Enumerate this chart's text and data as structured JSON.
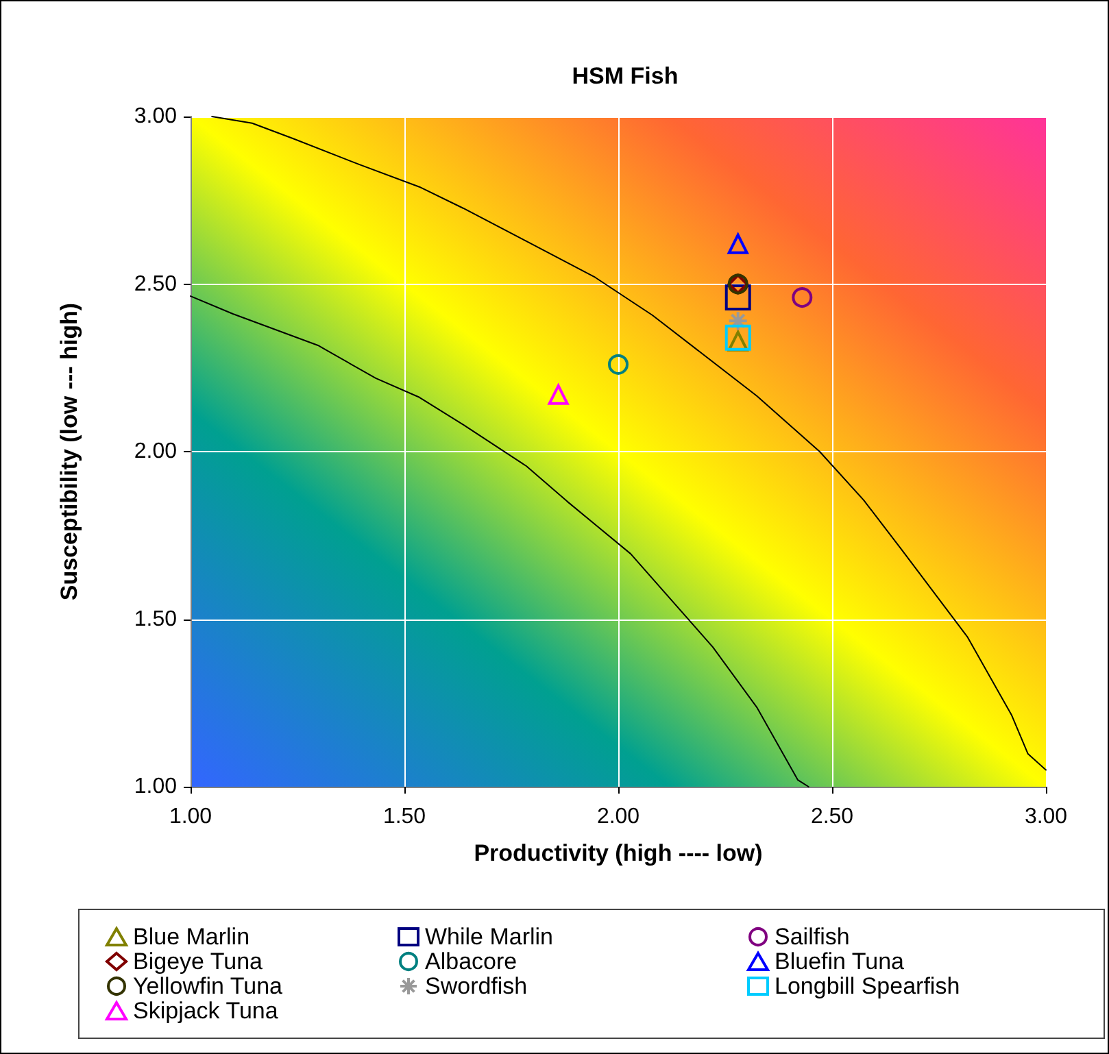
{
  "chart_data": {
    "type": "scatter",
    "title": "HSM Fish",
    "xlabel": "Productivity (high ---- low)",
    "ylabel": "Susceptibility (low --- high)",
    "xlim": [
      1,
      3
    ],
    "ylim": [
      1,
      3
    ],
    "xticks": [
      {
        "value": 1,
        "label": "1.00"
      },
      {
        "value": 1.5,
        "label": "1.50"
      },
      {
        "value": 2,
        "label": "2.00"
      },
      {
        "value": 2.5,
        "label": "2.50"
      },
      {
        "value": 3,
        "label": "3.00"
      }
    ],
    "yticks": [
      {
        "value": 1,
        "label": "1.00"
      },
      {
        "value": 1.5,
        "label": "1.50"
      },
      {
        "value": 2,
        "label": "2.00"
      },
      {
        "value": 2.5,
        "label": "2.50"
      },
      {
        "value": 3,
        "label": "3.00"
      }
    ],
    "grid": true,
    "legend": "bottom",
    "series": [
      {
        "name": "Blue Marlin",
        "color": "#808000",
        "marker": "triangle",
        "x": [
          2.28
        ],
        "values": [
          2.33
        ]
      },
      {
        "name": "While Marlin",
        "color": "#000080",
        "marker": "square",
        "x": [
          2.28
        ],
        "values": [
          2.46
        ]
      },
      {
        "name": "Sailfish",
        "color": "#800080",
        "marker": "circle",
        "x": [
          2.43
        ],
        "values": [
          2.46
        ]
      },
      {
        "name": "Bigeye Tuna",
        "color": "#800000",
        "marker": "diamond",
        "x": [
          2.28
        ],
        "values": [
          2.5
        ]
      },
      {
        "name": "Albacore",
        "color": "#008080",
        "marker": "circle",
        "x": [
          2.0
        ],
        "values": [
          2.26
        ]
      },
      {
        "name": "Bluefin Tuna",
        "color": "#0000ff",
        "marker": "triangle",
        "x": [
          2.28
        ],
        "values": [
          2.62
        ]
      },
      {
        "name": "Yellowfin Tuna",
        "color": "#333300",
        "marker": "circle",
        "x": [
          2.28
        ],
        "values": [
          2.5
        ]
      },
      {
        "name": "Swordfish",
        "color": "#999999",
        "marker": "cross",
        "x": [
          2.28
        ],
        "values": [
          2.39
        ]
      },
      {
        "name": "Longbill Spearfish",
        "color": "#00ccff",
        "marker": "square",
        "x": [
          2.28
        ],
        "values": [
          2.34
        ]
      },
      {
        "name": "Skipjack Tuna",
        "color": "#ff00ff",
        "marker": "triangle",
        "x": [
          1.86
        ],
        "values": [
          2.17
        ]
      },
      {
        "type": "line",
        "color": "#000000",
        "marker": "none",
        "x": [
          1.05,
          1.144,
          1.24,
          1.394,
          1.535,
          1.638,
          1.785,
          1.946,
          2.08,
          2.324,
          2.471,
          2.574,
          2.663,
          2.817,
          2.92,
          2.958,
          3.0
        ],
        "values": [
          3.0,
          2.98,
          2.934,
          2.857,
          2.79,
          2.726,
          2.628,
          2.52,
          2.407,
          2.166,
          2.0,
          1.855,
          1.707,
          1.446,
          1.213,
          1.098,
          1.05
        ]
      },
      {
        "type": "line",
        "color": "#000000",
        "marker": "none",
        "x": [
          1.0,
          1.099,
          1.298,
          1.433,
          1.535,
          1.638,
          1.785,
          1.881,
          2.029,
          2.125,
          2.221,
          2.324,
          2.42,
          2.445
        ],
        "values": [
          2.464,
          2.411,
          2.317,
          2.219,
          2.162,
          2.08,
          1.957,
          1.851,
          1.695,
          1.556,
          1.417,
          1.237,
          1.02,
          1.0
        ]
      }
    ]
  }
}
